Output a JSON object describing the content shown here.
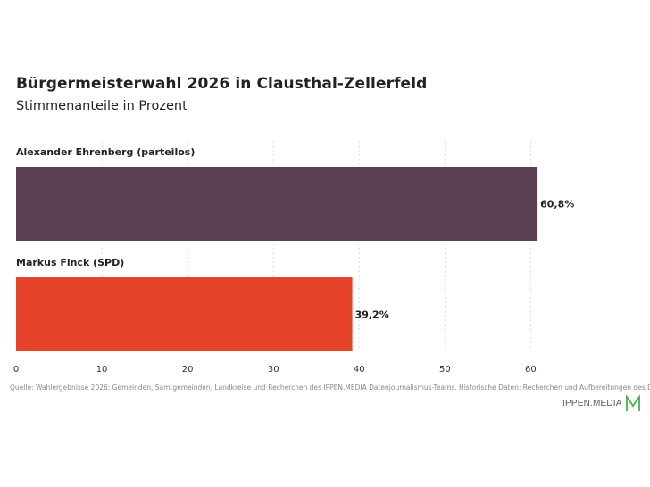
{
  "title": "Bürgermeisterwahl 2026 in Clausthal-Zellerfeld",
  "subtitle": "Stimmenanteile in Prozent",
  "source": "Quelle: Wahlergebnisse 2026: Gemeinden, Samtgemeinden, Landkreise und Recherchen des IPPEN.MEDIA Datenjournalismus-Teams. Historische Daten: Recherchen und Aufbereitungen des Daten",
  "brand": {
    "name": "IPPEN.MEDIA",
    "logo_icon": "ippen-media-m-logo",
    "logo_color": "#4caf50"
  },
  "chart_data": {
    "type": "bar",
    "orientation": "horizontal",
    "title": "Bürgermeisterwahl 2026 in Clausthal-Zellerfeld",
    "subtitle": "Stimmenanteile in Prozent",
    "categories": [
      "Alexander Ehrenberg (parteilos)",
      "Markus Finck (SPD)"
    ],
    "values": [
      60.8,
      39.2
    ],
    "value_labels": [
      "60,8%",
      "39,2%"
    ],
    "colors": [
      "#5a3e51",
      "#e5432a"
    ],
    "xlim": [
      0,
      61
    ],
    "x_ticks": [
      0,
      10,
      20,
      30,
      40,
      50,
      60
    ],
    "grid": "vertical dotted",
    "legend": "none"
  }
}
